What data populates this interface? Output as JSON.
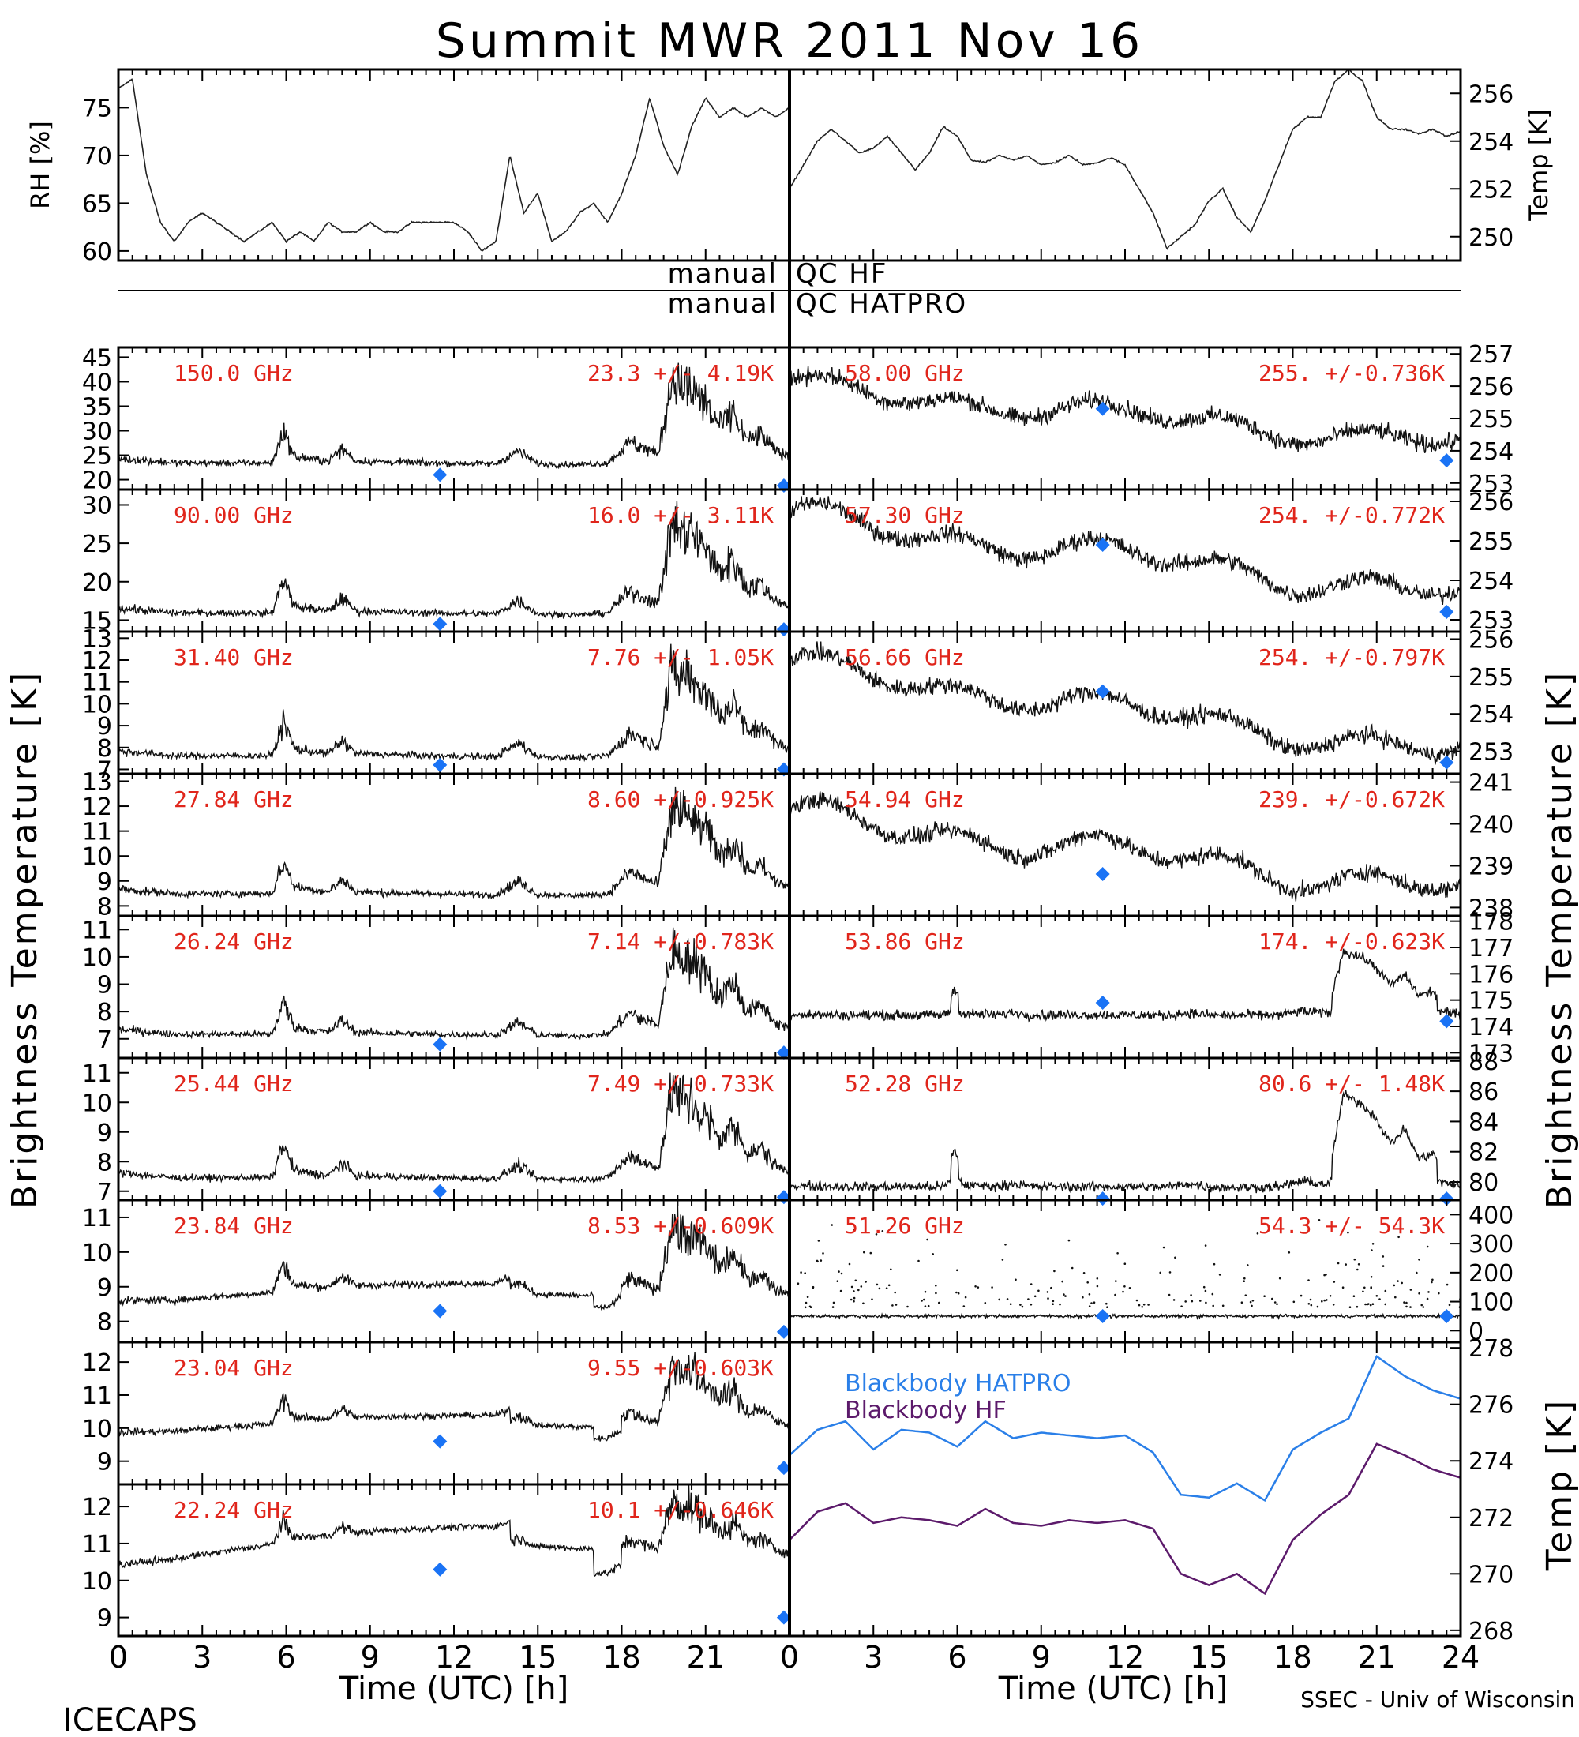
{
  "title": "Summit MWR 2011 Nov 16",
  "qc_labels": {
    "left": "manual",
    "hf": "QC HF",
    "hatpro": "QC HATPRO"
  },
  "xaxis": {
    "label": "Time (UTC) [h]",
    "ticks": [
      0,
      3,
      6,
      9,
      12,
      15,
      18,
      21,
      24
    ],
    "range": [
      0,
      24
    ]
  },
  "footer": {
    "left": "ICECAPS",
    "right": "SSEC - Univ of Wisconsin"
  },
  "ylabel_main": "Brightness Temperature [K]",
  "colors": {
    "annotation": "#e0251b",
    "sounding": "#1a73f5",
    "hatpro": "#2a7fe8",
    "hf": "#5c1a6b"
  },
  "chart_data": [
    {
      "id": "rh",
      "type": "line",
      "ylabel": "RH [%]",
      "ylim": [
        59,
        79
      ],
      "yticks": [
        60,
        65,
        70,
        75
      ],
      "series": [
        {
          "x": [
            0,
            0.5,
            1,
            1.5,
            2,
            2.5,
            3,
            3.5,
            4,
            4.5,
            5,
            5.5,
            6,
            6.5,
            7,
            7.5,
            8,
            8.5,
            9,
            9.5,
            10,
            10.5,
            11,
            11.5,
            12,
            12.5,
            13,
            13.5,
            14,
            14.5,
            15,
            15.5,
            16,
            16.5,
            17,
            17.5,
            18,
            18.5,
            19,
            19.5,
            20,
            20.5,
            21,
            21.5,
            22,
            22.5,
            23,
            23.5,
            24
          ],
          "values": [
            77,
            78,
            68,
            63,
            61,
            63,
            64,
            63,
            62,
            61,
            62,
            63,
            61,
            62,
            61,
            63,
            62,
            62,
            63,
            62,
            62,
            63,
            63,
            63,
            63,
            62,
            60,
            61,
            70,
            64,
            66,
            61,
            62,
            64,
            65,
            63,
            66,
            70,
            76,
            71,
            68,
            73,
            76,
            74,
            75,
            74,
            75,
            74,
            75
          ]
        }
      ]
    },
    {
      "id": "temp",
      "type": "line",
      "ylabel": "Temp [K]",
      "ylim": [
        249,
        257
      ],
      "yticks": [
        250,
        252,
        254,
        256
      ],
      "series": [
        {
          "x": [
            0,
            0.5,
            1,
            1.5,
            2,
            2.5,
            3,
            3.5,
            4,
            4.5,
            5,
            5.5,
            6,
            6.5,
            7,
            7.5,
            8,
            8.5,
            9,
            9.5,
            10,
            10.5,
            11,
            11.5,
            12,
            12.5,
            13,
            13.5,
            14,
            14.5,
            15,
            15.5,
            16,
            16.5,
            17,
            17.5,
            18,
            18.5,
            19,
            19.5,
            20,
            20.5,
            21,
            21.5,
            22,
            22.5,
            23,
            23.5,
            24
          ],
          "values": [
            252,
            253,
            254,
            254.5,
            254,
            253.5,
            253.7,
            254.2,
            253.5,
            252.8,
            253.5,
            254.6,
            254.2,
            253.2,
            253.1,
            253.4,
            253.2,
            253.4,
            253.0,
            253.1,
            253.4,
            253.0,
            253.1,
            253.3,
            253.0,
            252.0,
            251.0,
            249.5,
            250.0,
            250.5,
            251.5,
            252.0,
            250.8,
            250.2,
            251.5,
            253.0,
            254.5,
            255.0,
            255.0,
            256.5,
            257.0,
            256.5,
            255.0,
            254.5,
            254.5,
            254.3,
            254.5,
            254.2,
            254.4
          ]
        }
      ]
    },
    {
      "id": "tb150",
      "type": "line",
      "freq": "150.0 GHz",
      "stats": "23.3 +/- 4.19K",
      "ylim": [
        18,
        47
      ],
      "yticks": [
        20,
        25,
        30,
        35,
        40,
        45
      ],
      "baseline": 22.5,
      "sounding": [
        [
          11.5,
          21.0
        ],
        [
          23.8,
          18.8
        ]
      ]
    },
    {
      "id": "tb90",
      "type": "line",
      "freq": "90.00 GHz",
      "stats": "16.0 +/- 3.11K",
      "ylim": [
        13.5,
        32
      ],
      "yticks": [
        15,
        20,
        25,
        30
      ],
      "baseline": 15.3,
      "sounding": [
        [
          11.5,
          14.5
        ],
        [
          23.8,
          13.8
        ]
      ]
    },
    {
      "id": "tb31",
      "type": "line",
      "freq": "31.40 GHz",
      "stats": "7.76 +/- 1.05K",
      "ylim": [
        6.8,
        13.3
      ],
      "yticks": [
        7,
        8,
        9,
        10,
        11,
        12,
        13
      ],
      "baseline": 7.4,
      "sounding": [
        [
          11.5,
          7.2
        ],
        [
          23.8,
          7.0
        ]
      ]
    },
    {
      "id": "tb27",
      "type": "line",
      "freq": "27.84 GHz",
      "stats": "8.60 +/-0.925K",
      "ylim": [
        7.6,
        13.3
      ],
      "yticks": [
        8,
        9,
        10,
        11,
        12,
        13
      ],
      "baseline": 8.3,
      "sounding": []
    },
    {
      "id": "tb26",
      "type": "line",
      "freq": "26.24 GHz",
      "stats": "7.14 +/-0.783K",
      "ylim": [
        6.3,
        11.5
      ],
      "yticks": [
        7,
        8,
        9,
        10,
        11
      ],
      "baseline": 7.0,
      "sounding": [
        [
          11.5,
          6.8
        ],
        [
          23.8,
          6.5
        ]
      ]
    },
    {
      "id": "tb25",
      "type": "line",
      "freq": "25.44 GHz",
      "stats": "7.49 +/-0.733K",
      "ylim": [
        6.7,
        11.5
      ],
      "yticks": [
        7,
        8,
        9,
        10,
        11
      ],
      "baseline": 7.3,
      "sounding": [
        [
          11.5,
          7.0
        ],
        [
          23.8,
          6.8
        ]
      ]
    },
    {
      "id": "tb23_8",
      "type": "line",
      "freq": "23.84 GHz",
      "stats": "8.53 +/-0.609K",
      "ylim": [
        7.4,
        11.5
      ],
      "yticks": [
        8,
        9,
        10,
        11
      ],
      "baseline": 8.5,
      "sounding": [
        [
          11.5,
          8.3
        ],
        [
          23.8,
          7.7
        ]
      ]
    },
    {
      "id": "tb23_0",
      "type": "line",
      "freq": "23.04 GHz",
      "stats": "9.55 +/-0.603K",
      "ylim": [
        8.3,
        12.6
      ],
      "yticks": [
        9,
        10,
        11,
        12
      ],
      "baseline": 9.8,
      "sounding": [
        [
          11.5,
          9.6
        ],
        [
          23.8,
          8.8
        ]
      ]
    },
    {
      "id": "tb22",
      "type": "line",
      "freq": "22.24 GHz",
      "stats": "10.1 +/-0.646K",
      "ylim": [
        8.5,
        12.6
      ],
      "yticks": [
        9,
        10,
        11,
        12
      ],
      "baseline": 10.5,
      "sounding": [
        [
          11.5,
          10.3
        ],
        [
          23.8,
          9.0
        ]
      ]
    },
    {
      "id": "tb58",
      "type": "line",
      "freq": "58.00 GHz",
      "stats": "255. +/-0.736K",
      "ylim": [
        252.8,
        257.2
      ],
      "yticks": [
        253,
        254,
        255,
        256,
        257
      ],
      "baseline": 256.0,
      "trend": -1.8,
      "sounding": [
        [
          11.2,
          255.3
        ],
        [
          23.5,
          253.7
        ]
      ]
    },
    {
      "id": "tb57",
      "type": "line",
      "freq": "57.30 GHz",
      "stats": "254. +/-0.772K",
      "ylim": [
        252.7,
        256.3
      ],
      "yticks": [
        253,
        254,
        255,
        256
      ],
      "baseline": 255.6,
      "trend": -2.0,
      "sounding": [
        [
          11.2,
          254.9
        ],
        [
          23.5,
          253.2
        ]
      ]
    },
    {
      "id": "tb56",
      "type": "line",
      "freq": "56.66 GHz",
      "stats": "254. +/-0.797K",
      "ylim": [
        252.4,
        256.2
      ],
      "yticks": [
        253,
        254,
        255,
        256
      ],
      "baseline": 255.3,
      "trend": -2.4,
      "sounding": [
        [
          11.2,
          254.6
        ],
        [
          23.5,
          252.7
        ]
      ]
    },
    {
      "id": "tb54_9",
      "type": "line",
      "freq": "54.94 GHz",
      "stats": "239. +/-0.672K",
      "ylim": [
        237.8,
        241.2
      ],
      "yticks": [
        238,
        239,
        240,
        241
      ],
      "baseline": 240.2,
      "trend": -1.8,
      "sounding": [
        [
          11.2,
          238.8
        ]
      ]
    },
    {
      "id": "tb53",
      "type": "line",
      "freq": "53.86 GHz",
      "stats": "174. +/-0.623K",
      "ylim": [
        172.8,
        178.2
      ],
      "yticks": [
        173,
        174,
        175,
        176,
        177,
        178
      ],
      "baseline": 174.4,
      "sounding": [
        [
          11.2,
          174.9
        ],
        [
          23.5,
          174.2
        ]
      ]
    },
    {
      "id": "tb52",
      "type": "line",
      "freq": "52.28 GHz",
      "stats": "80.6 +/- 1.48K",
      "ylim": [
        78.8,
        88.2
      ],
      "yticks": [
        80,
        82,
        84,
        86,
        88
      ],
      "baseline": 79.6,
      "sounding": [
        [
          11.2,
          78.9
        ],
        [
          23.5,
          78.9
        ]
      ]
    },
    {
      "id": "tb51",
      "type": "line",
      "freq": "51.26 GHz",
      "stats": "54.3 +/- 54.3K",
      "ylim": [
        -40,
        450
      ],
      "yticks": [
        0,
        100,
        200,
        300,
        400
      ],
      "baseline": 50,
      "sounding": [
        [
          11.2,
          50
        ],
        [
          23.5,
          50
        ]
      ]
    },
    {
      "id": "bb",
      "type": "line",
      "ylabel": "Temp [K]",
      "ylim": [
        267.8,
        278.2
      ],
      "yticks": [
        268,
        270,
        272,
        274,
        276,
        278
      ],
      "series": [
        {
          "name": "Blackbody HATPRO",
          "x": [
            0,
            1,
            2,
            3,
            4,
            5,
            6,
            7,
            8,
            9,
            10,
            11,
            12,
            13,
            14,
            15,
            16,
            17,
            18,
            19,
            20,
            21,
            22,
            23,
            24
          ],
          "values": [
            274.2,
            275.1,
            275.4,
            274.4,
            275.1,
            275.0,
            274.5,
            275.4,
            274.8,
            275.0,
            274.9,
            274.8,
            274.9,
            274.3,
            272.8,
            272.7,
            273.2,
            272.6,
            274.4,
            275.0,
            275.5,
            277.7,
            277.0,
            276.5,
            276.2
          ]
        },
        {
          "name": "Blackbody HF",
          "x": [
            0,
            1,
            2,
            3,
            4,
            5,
            6,
            7,
            8,
            9,
            10,
            11,
            12,
            13,
            14,
            15,
            16,
            17,
            18,
            19,
            20,
            21,
            22,
            23,
            24
          ],
          "values": [
            271.2,
            272.2,
            272.5,
            271.8,
            272.0,
            271.9,
            271.7,
            272.3,
            271.8,
            271.7,
            271.9,
            271.8,
            271.9,
            271.6,
            270.0,
            269.6,
            270.0,
            269.3,
            271.2,
            272.1,
            272.8,
            274.6,
            274.2,
            273.7,
            273.4
          ]
        }
      ]
    }
  ]
}
